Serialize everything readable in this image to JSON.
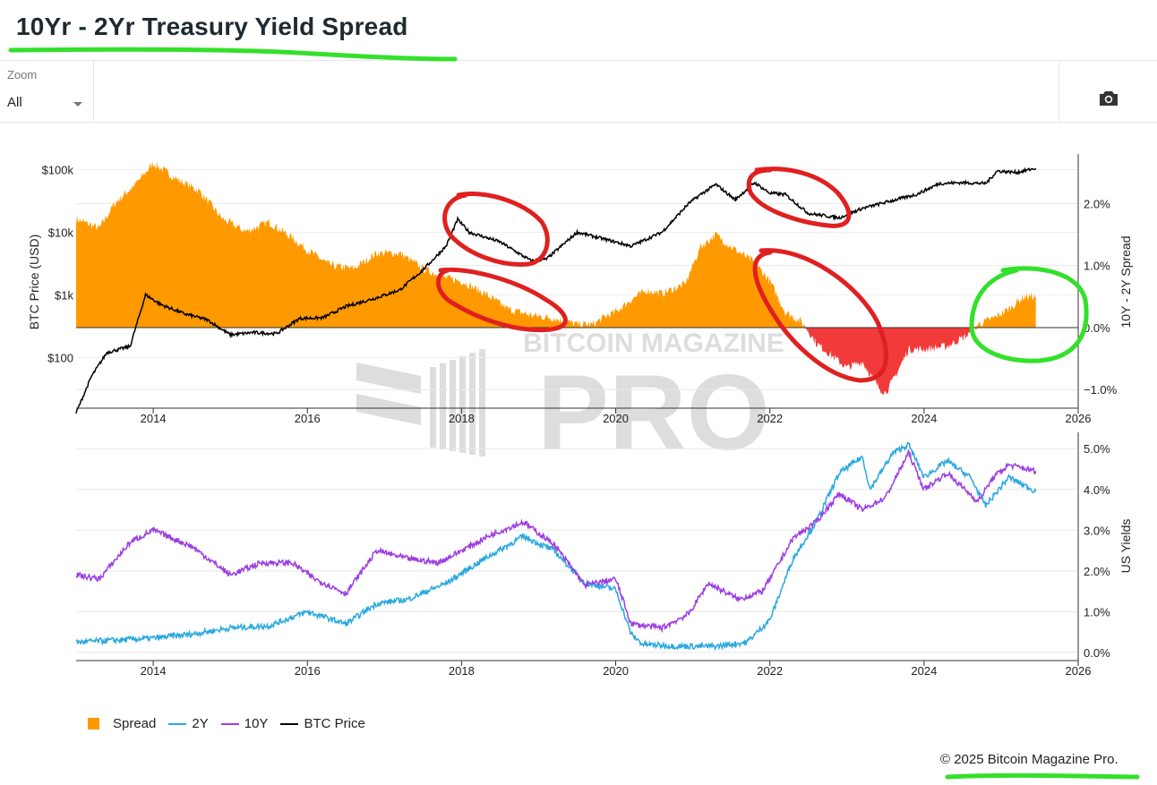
{
  "page": {
    "title": "10Yr - 2Yr Treasury Yield Spread",
    "zoom_label": "Zoom",
    "zoom_value": "All",
    "camera_icon": "camera-icon",
    "copyright": "© 2025 Bitcoin Magazine Pro.",
    "watermark_top": "BITCOIN MAGAZINE",
    "watermark_bottom": "PRO"
  },
  "colors": {
    "spread_positive": "#ff9900",
    "spread_negative": "#f23a3a",
    "two_year": "#29a8e0",
    "ten_year": "#9c3ee0",
    "btc": "#000000",
    "red_annotation": "#e02020",
    "green_annotation": "#33e02a"
  },
  "chart_data": [
    {
      "type": "area",
      "name": "top-panel",
      "x_ticks": [
        "2014",
        "2016",
        "2018",
        "2020",
        "2022",
        "2024",
        "2026"
      ],
      "y_left_label": "BTC Price (USD)",
      "y_left_ticks": [
        "$100",
        "$1k",
        "$10k",
        "$100k"
      ],
      "y_left_scale": "log",
      "y_right_label": "10Y - 2Y Spread",
      "y_right_ticks": [
        "−1.0%",
        "0.0%",
        "1.0%",
        "2.0%"
      ],
      "xlim": [
        2013.0,
        2026.0
      ],
      "spread_ylim": [
        -1.3,
        2.8
      ],
      "btc_ylim_log10": [
        1.19,
        5.25
      ],
      "series": [
        {
          "name": "Spread",
          "x": [
            2013.0,
            2013.3,
            2013.5,
            2013.8,
            2014.0,
            2014.3,
            2014.6,
            2014.9,
            2015.2,
            2015.5,
            2015.8,
            2016.0,
            2016.3,
            2016.6,
            2016.9,
            2017.2,
            2017.5,
            2017.8,
            2018.0,
            2018.3,
            2018.6,
            2018.9,
            2019.2,
            2019.5,
            2019.7,
            2019.9,
            2020.0,
            2020.2,
            2020.4,
            2020.6,
            2020.9,
            2021.1,
            2021.3,
            2021.5,
            2021.8,
            2022.0,
            2022.2,
            2022.4,
            2022.5,
            2022.6,
            2022.8,
            2023.0,
            2023.2,
            2023.4,
            2023.5,
            2023.6,
            2023.8,
            2024.0,
            2024.3,
            2024.6,
            2024.7,
            2024.9,
            2025.1,
            2025.3,
            2025.45
          ],
          "values": [
            1.75,
            1.6,
            2.0,
            2.35,
            2.65,
            2.4,
            2.2,
            1.75,
            1.55,
            1.7,
            1.45,
            1.25,
            1.0,
            0.95,
            1.2,
            1.2,
            0.95,
            0.8,
            0.75,
            0.55,
            0.3,
            0.2,
            0.15,
            0.05,
            0.05,
            0.2,
            0.25,
            0.45,
            0.6,
            0.55,
            0.7,
            1.3,
            1.5,
            1.3,
            1.05,
            0.75,
            0.25,
            0.1,
            -0.05,
            -0.25,
            -0.45,
            -0.65,
            -0.55,
            -0.95,
            -1.05,
            -0.85,
            -0.35,
            -0.35,
            -0.3,
            -0.1,
            0.05,
            0.15,
            0.3,
            0.5,
            0.5
          ]
        },
        {
          "name": "BTC Price",
          "x": [
            2013.0,
            2013.2,
            2013.4,
            2013.7,
            2013.9,
            2014.1,
            2014.4,
            2014.7,
            2015.0,
            2015.3,
            2015.6,
            2015.9,
            2016.2,
            2016.5,
            2016.9,
            2017.2,
            2017.5,
            2017.8,
            2017.95,
            2018.1,
            2018.5,
            2018.9,
            2019.1,
            2019.5,
            2019.9,
            2020.2,
            2020.6,
            2020.95,
            2021.1,
            2021.3,
            2021.55,
            2021.8,
            2022.0,
            2022.2,
            2022.5,
            2022.9,
            2023.2,
            2023.5,
            2023.9,
            2024.2,
            2024.5,
            2024.8,
            2024.95,
            2025.2,
            2025.45
          ],
          "values": [
            13,
            50,
            120,
            150,
            1000,
            700,
            500,
            400,
            230,
            250,
            240,
            420,
            430,
            650,
            900,
            1200,
            2500,
            6000,
            16000,
            10000,
            7000,
            3500,
            3700,
            10000,
            7500,
            6000,
            10000,
            29000,
            40000,
            58000,
            33000,
            62000,
            42000,
            40000,
            20000,
            17000,
            24000,
            30000,
            40000,
            60000,
            62000,
            60000,
            95000,
            90000,
            105000
          ]
        }
      ]
    },
    {
      "type": "line",
      "name": "bottom-panel",
      "x_ticks": [
        "2014",
        "2016",
        "2018",
        "2020",
        "2022",
        "2024",
        "2026"
      ],
      "y_right_label": "US Yields",
      "y_ticks": [
        "0.0%",
        "1.0%",
        "2.0%",
        "3.0%",
        "4.0%",
        "5.0%"
      ],
      "xlim": [
        2013.0,
        2026.0
      ],
      "ylim": [
        -0.2,
        5.4
      ],
      "series": [
        {
          "name": "2Y",
          "x": [
            2013.0,
            2013.5,
            2014.0,
            2014.5,
            2015.0,
            2015.5,
            2016.0,
            2016.5,
            2016.9,
            2017.3,
            2017.8,
            2018.3,
            2018.8,
            2019.2,
            2019.6,
            2020.0,
            2020.2,
            2020.35,
            2020.8,
            2021.3,
            2021.7,
            2022.0,
            2022.3,
            2022.6,
            2022.9,
            2023.2,
            2023.3,
            2023.6,
            2023.8,
            2024.0,
            2024.3,
            2024.6,
            2024.8,
            2025.1,
            2025.45
          ],
          "values": [
            0.25,
            0.3,
            0.35,
            0.45,
            0.6,
            0.65,
            1.0,
            0.7,
            1.2,
            1.3,
            1.7,
            2.3,
            2.85,
            2.5,
            1.7,
            1.55,
            0.45,
            0.2,
            0.15,
            0.15,
            0.25,
            0.8,
            2.3,
            3.2,
            4.4,
            4.8,
            4.0,
            4.9,
            5.1,
            4.3,
            4.7,
            4.3,
            3.6,
            4.3,
            3.95
          ]
        },
        {
          "name": "10Y",
          "x": [
            2013.0,
            2013.3,
            2013.7,
            2014.0,
            2014.5,
            2015.0,
            2015.4,
            2015.8,
            2016.1,
            2016.5,
            2016.9,
            2017.3,
            2017.7,
            2018.0,
            2018.4,
            2018.8,
            2019.2,
            2019.6,
            2020.0,
            2020.2,
            2020.6,
            2020.95,
            2021.2,
            2021.6,
            2021.9,
            2022.0,
            2022.3,
            2022.6,
            2022.9,
            2023.2,
            2023.5,
            2023.8,
            2024.0,
            2024.3,
            2024.7,
            2024.9,
            2025.1,
            2025.45
          ],
          "values": [
            1.9,
            1.8,
            2.7,
            3.0,
            2.6,
            1.9,
            2.2,
            2.2,
            1.8,
            1.45,
            2.5,
            2.3,
            2.2,
            2.5,
            2.9,
            3.2,
            2.65,
            1.65,
            1.8,
            0.7,
            0.6,
            0.95,
            1.7,
            1.3,
            1.5,
            1.8,
            2.8,
            3.2,
            3.9,
            3.5,
            3.8,
            4.9,
            4.0,
            4.4,
            3.7,
            4.3,
            4.6,
            4.45
          ]
        }
      ]
    }
  ],
  "legend": {
    "items": [
      {
        "label": "Spread",
        "kind": "box",
        "color": "#ff9900"
      },
      {
        "label": "2Y",
        "kind": "line",
        "color": "#29a8e0"
      },
      {
        "label": "10Y",
        "kind": "line",
        "color": "#9c3ee0"
      },
      {
        "label": "BTC Price",
        "kind": "line",
        "color": "#000000"
      }
    ]
  }
}
